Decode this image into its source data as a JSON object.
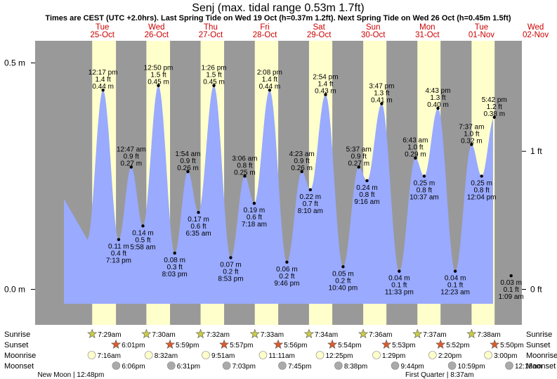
{
  "chart_data": {
    "type": "area",
    "title": "Senj (max. tidal range 0.53m 1.7ft)",
    "subtitle": "Times are CEST (UTC +2.0hrs). Last Spring Tide on Wed 19 Oct (h=0.37m 1.2ft). Next Spring Tide on Wed 26 Oct (h=0.45m 1.5ft)",
    "y_left_ticks": [
      {
        "v": 0.0,
        "label": "0.0 m"
      },
      {
        "v": 0.5,
        "label": "0.5 m"
      }
    ],
    "y_right_ticks": [
      {
        "ft": 0,
        "label": "0 ft"
      },
      {
        "ft": 1,
        "label": "1 ft"
      }
    ],
    "ylim_m": [
      -0.05,
      0.56
    ],
    "days": [
      {
        "dow": "Tue",
        "date": "25-Oct"
      },
      {
        "dow": "Wed",
        "date": "26-Oct"
      },
      {
        "dow": "Thu",
        "date": "27-Oct"
      },
      {
        "dow": "Fri",
        "date": "28-Oct"
      },
      {
        "dow": "Sat",
        "date": "29-Oct"
      },
      {
        "dow": "Sun",
        "date": "30-Oct"
      },
      {
        "dow": "Mon",
        "date": "31-Oct"
      },
      {
        "dow": "Tue",
        "date": "01-Nov"
      },
      {
        "dow": "Wed",
        "date": "02-Nov"
      }
    ],
    "tides": [
      {
        "time": "12:17 pm",
        "ft": "1.4 ft",
        "m": "0.44 m",
        "h": 0.44,
        "type": "high",
        "day": 0,
        "hour": 12.28
      },
      {
        "time": "7:13 pm",
        "ft": "0.4 ft",
        "m": "0.11 m",
        "h": 0.11,
        "type": "low",
        "day": 0,
        "hour": 19.22
      },
      {
        "time": "12:47 am",
        "ft": "0.9 ft",
        "m": "0.27 m",
        "h": 0.27,
        "type": "high",
        "day": 1,
        "hour": 0.78
      },
      {
        "time": "5:58 am",
        "ft": "0.5 ft",
        "m": "0.14 m",
        "h": 0.14,
        "type": "low",
        "day": 1,
        "hour": 5.97
      },
      {
        "time": "12:50 pm",
        "ft": "1.5 ft",
        "m": "0.45 m",
        "h": 0.45,
        "type": "high",
        "day": 1,
        "hour": 12.83
      },
      {
        "time": "8:03 pm",
        "ft": "0.3 ft",
        "m": "0.08 m",
        "h": 0.08,
        "type": "low",
        "day": 1,
        "hour": 20.05
      },
      {
        "time": "1:54 am",
        "ft": "0.9 ft",
        "m": "0.26 m",
        "h": 0.26,
        "type": "high",
        "day": 2,
        "hour": 1.9
      },
      {
        "time": "6:35 am",
        "ft": "0.6 ft",
        "m": "0.17 m",
        "h": 0.17,
        "type": "low",
        "day": 2,
        "hour": 6.58
      },
      {
        "time": "1:26 pm",
        "ft": "1.5 ft",
        "m": "0.45 m",
        "h": 0.45,
        "type": "high",
        "day": 2,
        "hour": 13.43
      },
      {
        "time": "8:53 pm",
        "ft": "0.2 ft",
        "m": "0.07 m",
        "h": 0.07,
        "type": "low",
        "day": 2,
        "hour": 20.88
      },
      {
        "time": "3:06 am",
        "ft": "0.8 ft",
        "m": "0.25 m",
        "h": 0.25,
        "type": "high",
        "day": 3,
        "hour": 3.1
      },
      {
        "time": "7:18 am",
        "ft": "0.6 ft",
        "m": "0.19 m",
        "h": 0.19,
        "type": "low",
        "day": 3,
        "hour": 7.3
      },
      {
        "time": "2:08 pm",
        "ft": "1.4 ft",
        "m": "0.44 m",
        "h": 0.44,
        "type": "high",
        "day": 3,
        "hour": 14.13
      },
      {
        "time": "9:46 pm",
        "ft": "0.2 ft",
        "m": "0.06 m",
        "h": 0.06,
        "type": "low",
        "day": 3,
        "hour": 21.77
      },
      {
        "time": "4:23 am",
        "ft": "0.9 ft",
        "m": "0.26 m",
        "h": 0.26,
        "type": "high",
        "day": 4,
        "hour": 4.38
      },
      {
        "time": "8:10 am",
        "ft": "0.7 ft",
        "m": "0.22 m",
        "h": 0.22,
        "type": "low",
        "day": 4,
        "hour": 8.17
      },
      {
        "time": "2:54 pm",
        "ft": "1.4 ft",
        "m": "0.43 m",
        "h": 0.43,
        "type": "high",
        "day": 4,
        "hour": 14.9
      },
      {
        "time": "10:40 pm",
        "ft": "0.2 ft",
        "m": "0.05 m",
        "h": 0.05,
        "type": "low",
        "day": 4,
        "hour": 22.67
      },
      {
        "time": "5:37 am",
        "ft": "0.9 ft",
        "m": "0.27 m",
        "h": 0.27,
        "type": "high",
        "day": 5,
        "hour": 5.62
      },
      {
        "time": "9:16 am",
        "ft": "0.8 ft",
        "m": "0.24 m",
        "h": 0.24,
        "type": "low",
        "day": 5,
        "hour": 9.27
      },
      {
        "time": "3:47 pm",
        "ft": "1.3 ft",
        "m": "0.41 m",
        "h": 0.41,
        "type": "high",
        "day": 5,
        "hour": 15.78
      },
      {
        "time": "11:33 pm",
        "ft": "0.1 ft",
        "m": "0.04 m",
        "h": 0.04,
        "type": "low",
        "day": 5,
        "hour": 23.55
      },
      {
        "time": "6:43 am",
        "ft": "1.0 ft",
        "m": "0.29 m",
        "h": 0.29,
        "type": "high",
        "day": 6,
        "hour": 6.72
      },
      {
        "time": "10:37 am",
        "ft": "0.8 ft",
        "m": "0.25 m",
        "h": 0.25,
        "type": "low",
        "day": 6,
        "hour": 10.62
      },
      {
        "time": "4:43 pm",
        "ft": "1.3 ft",
        "m": "0.40 m",
        "h": 0.4,
        "type": "high",
        "day": 6,
        "hour": 16.72
      },
      {
        "time": "12:23 am",
        "ft": "0.1 ft",
        "m": "0.04 m",
        "h": 0.04,
        "type": "low",
        "day": 7,
        "hour": 0.38
      },
      {
        "time": "7:37 am",
        "ft": "1.0 ft",
        "m": "0.32 m",
        "h": 0.32,
        "type": "high",
        "day": 7,
        "hour": 7.62
      },
      {
        "time": "12:04 pm",
        "ft": "0.8 ft",
        "m": "0.25 m",
        "h": 0.25,
        "type": "low",
        "day": 7,
        "hour": 12.07
      },
      {
        "time": "5:42 pm",
        "ft": "1.2 ft",
        "m": "0.38 m",
        "h": 0.38,
        "type": "high",
        "day": 7,
        "hour": 17.7
      },
      {
        "time": "1:09 am",
        "ft": "0.1 ft",
        "m": "0.03 m",
        "h": 0.03,
        "type": "low",
        "day": 8,
        "hour": 1.15
      }
    ],
    "sunrise": [
      {
        "day": 0,
        "hour": 7.48,
        "t": "7:29am"
      },
      {
        "day": 1,
        "hour": 7.5,
        "t": "7:30am"
      },
      {
        "day": 2,
        "hour": 7.53,
        "t": "7:32am"
      },
      {
        "day": 3,
        "hour": 7.55,
        "t": "7:33am"
      },
      {
        "day": 4,
        "hour": 7.57,
        "t": "7:34am"
      },
      {
        "day": 5,
        "hour": 7.6,
        "t": "7:36am"
      },
      {
        "day": 6,
        "hour": 7.62,
        "t": "7:37am"
      },
      {
        "day": 7,
        "hour": 7.63,
        "t": "7:38am"
      }
    ],
    "sunset": [
      {
        "day": 0,
        "hour": 18.02,
        "t": "6:01pm"
      },
      {
        "day": 1,
        "hour": 17.98,
        "t": "5:59pm"
      },
      {
        "day": 2,
        "hour": 17.95,
        "t": "5:57pm"
      },
      {
        "day": 3,
        "hour": 17.93,
        "t": "5:56pm"
      },
      {
        "day": 4,
        "hour": 17.9,
        "t": "5:54pm"
      },
      {
        "day": 5,
        "hour": 17.88,
        "t": "5:53pm"
      },
      {
        "day": 6,
        "hour": 17.87,
        "t": "5:52pm"
      },
      {
        "day": 7,
        "hour": 17.83,
        "t": "5:50pm"
      }
    ],
    "moonrise": [
      {
        "day": 0,
        "hour": 7.27,
        "t": "7:16am"
      },
      {
        "day": 1,
        "hour": 8.53,
        "t": "8:32am"
      },
      {
        "day": 2,
        "hour": 9.85,
        "t": "9:51am"
      },
      {
        "day": 3,
        "hour": 11.18,
        "t": "11:11am"
      },
      {
        "day": 4,
        "hour": 12.42,
        "t": "12:25pm"
      },
      {
        "day": 5,
        "hour": 13.48,
        "t": "1:29pm"
      },
      {
        "day": 6,
        "hour": 14.33,
        "t": "2:20pm"
      },
      {
        "day": 7,
        "hour": 15.0,
        "t": "3:00pm"
      }
    ],
    "moonset": [
      {
        "day": 0,
        "hour": 18.1,
        "t": "6:06pm"
      },
      {
        "day": 1,
        "hour": 18.52,
        "t": "6:31pm"
      },
      {
        "day": 2,
        "hour": 19.05,
        "t": "7:03pm"
      },
      {
        "day": 3,
        "hour": 19.75,
        "t": "7:45pm"
      },
      {
        "day": 4,
        "hour": 20.63,
        "t": "8:38pm"
      },
      {
        "day": 5,
        "hour": 21.73,
        "t": "9:44pm"
      },
      {
        "day": 6,
        "hour": 22.98,
        "t": "10:59pm"
      },
      {
        "day": 8,
        "hour": 0.3,
        "t": "12:18am"
      }
    ],
    "row_labels": {
      "sunrise": "Sunrise",
      "sunset": "Sunset",
      "moonrise": "Moonrise",
      "moonset": "Moonset"
    },
    "moon_phases": [
      {
        "text": "New Moon | 12:48pm",
        "day": 0,
        "hour": 12.8,
        "align": "end"
      },
      {
        "text": "First Quarter | 8:37am",
        "day": 7,
        "hour": 8.62,
        "align": "end"
      }
    ],
    "colors": {
      "night": "#999999",
      "day": "#ffffcc",
      "water": "#99aaff",
      "outside": "#ffffff",
      "sunrise": "#cccc44",
      "sunset": "#e05a2a",
      "moonrise": "#ffffcc",
      "moonset": "#aaaaaa",
      "daylabel": "#cc0000"
    }
  }
}
